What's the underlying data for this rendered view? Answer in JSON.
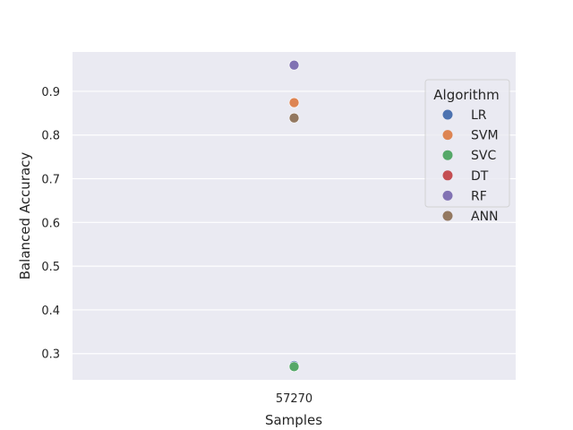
{
  "chart_data": {
    "type": "scatter",
    "categories": [
      "57270"
    ],
    "xlabel": "Samples",
    "ylabel": "Balanced Accuracy",
    "ylim": [
      0.24,
      0.99
    ],
    "yticks": [
      0.3,
      0.4,
      0.5,
      0.6,
      0.7,
      0.8,
      0.9
    ],
    "grid": true,
    "legend": {
      "title": "Algorithm",
      "placement": "top-right"
    },
    "series": [
      {
        "name": "LR",
        "color": "#4c72b0",
        "values": [
          0.273
        ]
      },
      {
        "name": "SVM",
        "color": "#dd8452",
        "values": [
          0.874
        ]
      },
      {
        "name": "SVC",
        "color": "#55a868",
        "values": [
          0.27
        ]
      },
      {
        "name": "DT",
        "color": "#c44e52",
        "values": [
          0.96
        ]
      },
      {
        "name": "RF",
        "color": "#8172b3",
        "values": [
          0.96
        ]
      },
      {
        "name": "ANN",
        "color": "#937860",
        "values": [
          0.839
        ]
      }
    ]
  }
}
